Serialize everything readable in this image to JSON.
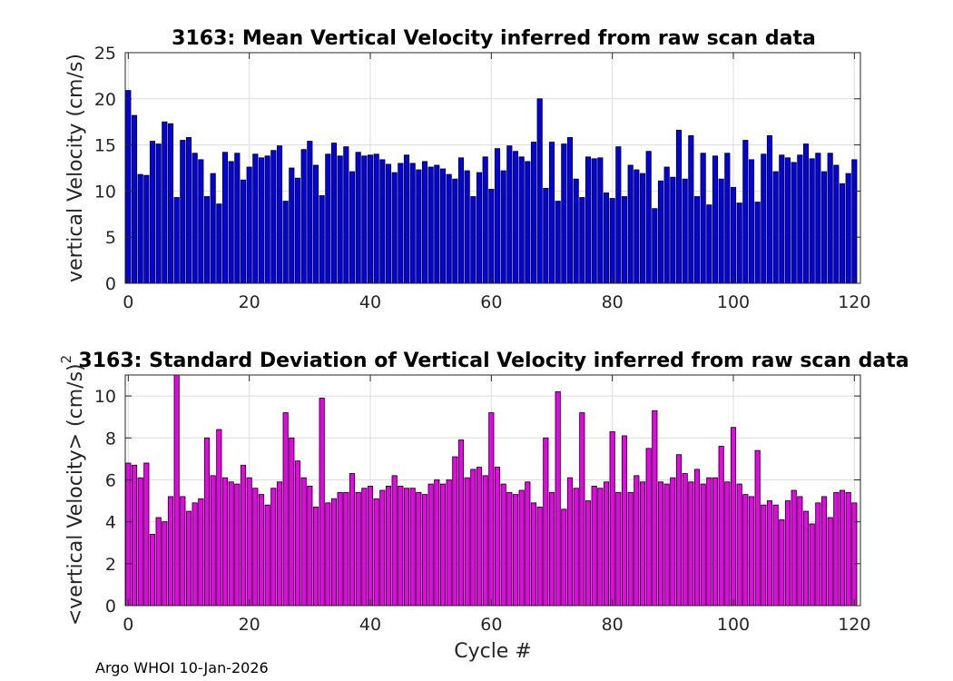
{
  "footer": "Argo WHOI 10-Jan-2026",
  "chart_data": [
    {
      "type": "bar",
      "title": "3163: Mean Vertical Velocity inferred from raw scan data",
      "xlabel": "",
      "ylabel": "vertical Velocity (cm/s)",
      "xlim": [
        -0.5,
        121
      ],
      "ylim": [
        0,
        25
      ],
      "xticks": [
        0,
        20,
        40,
        60,
        80,
        100,
        120
      ],
      "yticks": [
        0,
        5,
        10,
        15,
        20,
        25
      ],
      "grid": true,
      "color": "#0000ee",
      "x_start": 0,
      "values": [
        20.9,
        18.2,
        11.8,
        11.7,
        15.4,
        15.1,
        17.5,
        17.3,
        9.3,
        15.5,
        15.8,
        14.1,
        13.4,
        9.4,
        11.9,
        8.6,
        14.2,
        13.2,
        14.1,
        11.2,
        12.6,
        14.0,
        13.6,
        13.8,
        14.4,
        14.9,
        8.9,
        12.5,
        11.4,
        14.5,
        15.4,
        12.8,
        9.5,
        14.0,
        15.2,
        13.8,
        14.8,
        12.1,
        14.2,
        13.8,
        13.9,
        14.0,
        13.4,
        12.9,
        12.0,
        13.0,
        13.9,
        13.0,
        12.3,
        13.2,
        12.6,
        12.8,
        12.4,
        11.8,
        11.3,
        13.6,
        12.2,
        9.4,
        12.0,
        13.7,
        10.2,
        14.6,
        12.2,
        14.9,
        14.3,
        13.7,
        13.2,
        15.3,
        20.0,
        10.3,
        15.3,
        8.9,
        15.1,
        15.8,
        11.3,
        9.3,
        13.7,
        13.5,
        13.6,
        9.8,
        9.2,
        14.8,
        9.4,
        12.8,
        12.3,
        11.9,
        14.3,
        8.1,
        11.1,
        12.6,
        11.5,
        16.6,
        11.3,
        16.0,
        9.4,
        14.1,
        8.5,
        13.8,
        11.3,
        14.1,
        10.4,
        8.7,
        15.5,
        13.4,
        8.8,
        14.0,
        16.0,
        12.1,
        13.9,
        13.6,
        13.1,
        13.9,
        15.1,
        13.5,
        14.1,
        12.1,
        14.1,
        12.8,
        10.8,
        11.9,
        13.4
      ]
    },
    {
      "type": "bar",
      "title": "3163: Standard Deviation of Vertical Velocity inferred from raw scan data",
      "xlabel": "Cycle #",
      "ylabel": "<vertical Velocity> (cm/s)",
      "ylabel_superscript": "2",
      "xlim": [
        -0.5,
        121
      ],
      "ylim": [
        0,
        11
      ],
      "xticks": [
        0,
        20,
        40,
        60,
        80,
        100,
        120
      ],
      "yticks": [
        0,
        2,
        4,
        6,
        8,
        10
      ],
      "grid": true,
      "color": "#ee00ee",
      "x_start": 0,
      "values": [
        6.8,
        6.7,
        6.1,
        6.8,
        3.4,
        4.2,
        4.0,
        5.2,
        11.0,
        5.2,
        4.5,
        4.9,
        5.1,
        8.0,
        6.2,
        8.4,
        6.1,
        5.9,
        5.8,
        6.7,
        6.1,
        5.6,
        5.3,
        4.8,
        5.6,
        5.9,
        9.2,
        8.0,
        6.9,
        6.1,
        5.7,
        4.7,
        9.9,
        4.9,
        5.1,
        5.4,
        5.4,
        6.3,
        5.4,
        5.6,
        5.7,
        5.1,
        5.5,
        5.7,
        6.2,
        5.7,
        5.6,
        5.6,
        5.4,
        5.3,
        5.8,
        6.0,
        5.8,
        6.0,
        7.1,
        7.9,
        6.1,
        6.5,
        6.6,
        6.2,
        9.2,
        6.6,
        5.8,
        5.4,
        5.3,
        5.5,
        5.9,
        4.9,
        4.7,
        8.0,
        5.4,
        10.2,
        4.6,
        6.1,
        5.6,
        9.2,
        5.0,
        5.7,
        5.6,
        5.9,
        8.3,
        5.4,
        8.1,
        5.4,
        6.2,
        5.9,
        7.5,
        9.3,
        5.9,
        5.8,
        6.1,
        7.2,
        6.3,
        5.9,
        6.5,
        5.8,
        6.1,
        6.1,
        7.6,
        5.9,
        8.5,
        5.8,
        5.3,
        5.2,
        7.4,
        4.8,
        5.0,
        4.8,
        4.1,
        5.0,
        5.5,
        5.2,
        4.5,
        3.9,
        4.9,
        5.2,
        4.2,
        5.4,
        5.5,
        5.4,
        4.9
      ]
    }
  ]
}
